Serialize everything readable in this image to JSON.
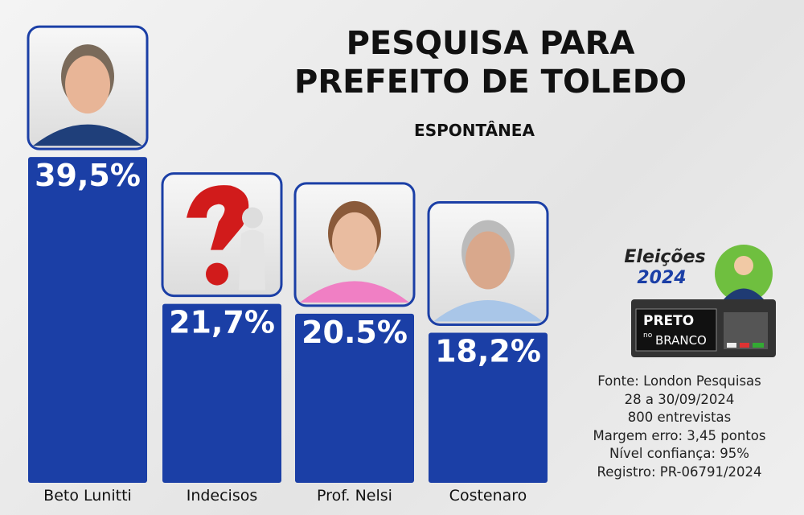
{
  "chart_data": {
    "type": "bar",
    "title": "PESQUISA PARA PREFEITO DE TOLEDO",
    "subtitle": "ESPONTÂNEA",
    "categories": [
      "Beto Lunitti",
      "Indecisos",
      "Prof. Nelsi",
      "Costenaro"
    ],
    "values": [
      39.5,
      21.7,
      20.5,
      18.2
    ],
    "value_labels": [
      "39,5%",
      "21,7%",
      "20.5%",
      "18,2%"
    ],
    "color": "#1b3fa6",
    "notes": [
      "Fonte: London Pesquisas",
      "28 a 30/09/2024",
      "800 entrevistas",
      "Margem erro: 3,45 pontos",
      "Nível confiança: 95%",
      "Registro: PR-06791/2024"
    ]
  },
  "logo": {
    "title": "Eleições",
    "year": "2024",
    "brand_top": "PRETO",
    "brand_mid": "no",
    "brand_bottom": "BRANCO"
  }
}
